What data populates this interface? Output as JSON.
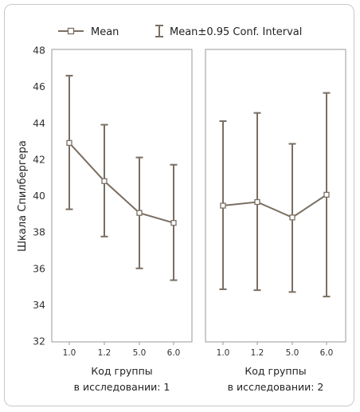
{
  "legend": {
    "mean_label": "Mean",
    "ci_label": "Mean±0.95 Conf. Interval"
  },
  "colors": {
    "series": "#7a6e62",
    "panel_border": "#9a9a9a",
    "frame": "#c8c8c8"
  },
  "chart_data": {
    "type": "line",
    "ylabel": "Шкала Спилбергера",
    "ylim": [
      32,
      48
    ],
    "yticks": [
      "32",
      "34",
      "36",
      "38",
      "40",
      "42",
      "44",
      "46",
      "48"
    ],
    "grid": false,
    "legend_position": "top",
    "panels": [
      {
        "xlabel_line1": "Код группы",
        "xlabel_line2": "в исследовании: 1",
        "categories": [
          "1.0",
          "1.2",
          "5.0",
          "6.0"
        ],
        "mean": [
          42.9,
          40.8,
          39.05,
          38.5
        ],
        "ci_low": [
          39.25,
          37.75,
          36.0,
          35.35
        ],
        "ci_high": [
          46.6,
          43.9,
          42.1,
          41.7
        ]
      },
      {
        "xlabel_line1": "Код группы",
        "xlabel_line2": "в исследовании: 2",
        "categories": [
          "1.0",
          "1.2",
          "5.0",
          "6.0"
        ],
        "mean": [
          39.45,
          39.65,
          38.8,
          40.05
        ],
        "ci_low": [
          34.85,
          34.8,
          34.7,
          34.45
        ],
        "ci_high": [
          44.1,
          44.55,
          42.85,
          45.65
        ]
      }
    ]
  }
}
